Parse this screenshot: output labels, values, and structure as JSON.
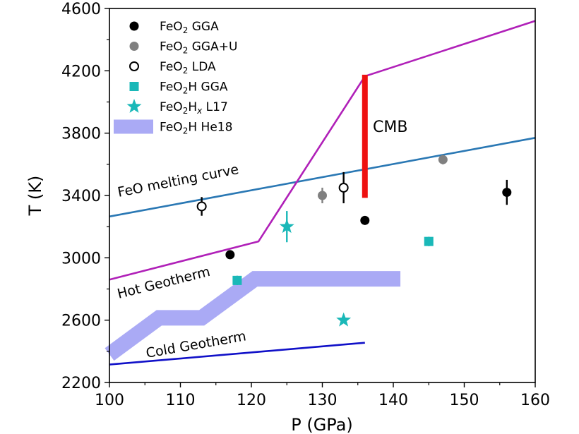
{
  "chart_data": {
    "type": "scatter",
    "title": "",
    "xlabel": "P (GPa)",
    "ylabel": "T (K)",
    "xlim": [
      100,
      160
    ],
    "ylim": [
      2200,
      4600
    ],
    "xticks": [
      100,
      110,
      120,
      130,
      140,
      150,
      160
    ],
    "yticks": [
      2200,
      2600,
      3000,
      3400,
      3800,
      4200,
      4600
    ],
    "grid": false,
    "legend_position": "top-left",
    "legend": [
      {
        "id": "feo2_gga",
        "label": "FeO2 GGA",
        "formula": [
          "FeO",
          "2",
          " GGA"
        ],
        "marker": "filled-circle",
        "color": "#000000"
      },
      {
        "id": "feo2_ggau",
        "label": "FeO2 GGA+U",
        "formula": [
          "FeO",
          "2",
          " GGA+U"
        ],
        "marker": "filled-circle",
        "color": "#808080"
      },
      {
        "id": "feo2_lda",
        "label": "FeO2 LDA",
        "formula": [
          "FeO",
          "2",
          " LDA"
        ],
        "marker": "open-circle",
        "color": "#000000"
      },
      {
        "id": "feo2h_gga",
        "label": "FeO2H GGA",
        "formula": [
          "FeO",
          "2",
          "H GGA"
        ],
        "marker": "square",
        "color": "#1ab8b8"
      },
      {
        "id": "feo2hx_l17",
        "label": "FeO2Hx L17",
        "formula": [
          "FeO",
          "2",
          "H",
          "x",
          " L17"
        ],
        "marker": "star",
        "color": "#1ab8b8"
      },
      {
        "id": "feo2h_he18",
        "label": "FeO2H He18",
        "formula": [
          "FeO",
          "2",
          "H He18"
        ],
        "marker": "band",
        "color": "#aaaaf5"
      }
    ],
    "series": [
      {
        "name": "FeO2 GGA",
        "points": [
          {
            "x": 117,
            "y": 3020,
            "err": 0
          },
          {
            "x": 136,
            "y": 3240,
            "err": 0
          },
          {
            "x": 156,
            "y": 3420,
            "err": 80
          }
        ]
      },
      {
        "name": "FeO2 GGA+U",
        "points": [
          {
            "x": 130,
            "y": 3400,
            "err": 50
          },
          {
            "x": 147,
            "y": 3630,
            "err": 30
          }
        ]
      },
      {
        "name": "FeO2 LDA",
        "points": [
          {
            "x": 113,
            "y": 3330,
            "err": 60
          },
          {
            "x": 133,
            "y": 3450,
            "err": 100
          }
        ]
      },
      {
        "name": "FeO2H GGA",
        "points": [
          {
            "x": 118,
            "y": 2855,
            "err": 30
          },
          {
            "x": 145,
            "y": 3105,
            "err": 30
          }
        ]
      },
      {
        "name": "FeO2Hx L17",
        "points": [
          {
            "x": 125,
            "y": 3200,
            "err": 100
          },
          {
            "x": 133,
            "y": 2600,
            "err": 0
          }
        ]
      },
      {
        "name": "FeO2H He18",
        "x": [
          100,
          107,
          113,
          120.5,
          141
        ],
        "y": [
          2380,
          2615,
          2615,
          2865,
          2865
        ]
      },
      {
        "name": "FeO melting curve",
        "x": [
          100,
          160
        ],
        "y": [
          3265,
          3770
        ],
        "color": "#2a78b4"
      },
      {
        "name": "Hot Geotherm",
        "x": [
          100,
          121,
          136,
          160
        ],
        "y": [
          2860,
          3105,
          4165,
          4520
        ],
        "color": "#b020b8"
      },
      {
        "name": "Cold Geotherm",
        "x": [
          100,
          136
        ],
        "y": [
          2315,
          2455
        ],
        "color": "#1010c8"
      },
      {
        "name": "CMB",
        "x": [
          136,
          136
        ],
        "y": [
          3385,
          4175
        ],
        "color": "#ee1111"
      }
    ],
    "annotations": {
      "melting_curve": "FeO melting curve",
      "hot_geotherm": "Hot Geotherm",
      "cold_geotherm": "Cold Geotherm",
      "cmb": "CMB"
    }
  }
}
